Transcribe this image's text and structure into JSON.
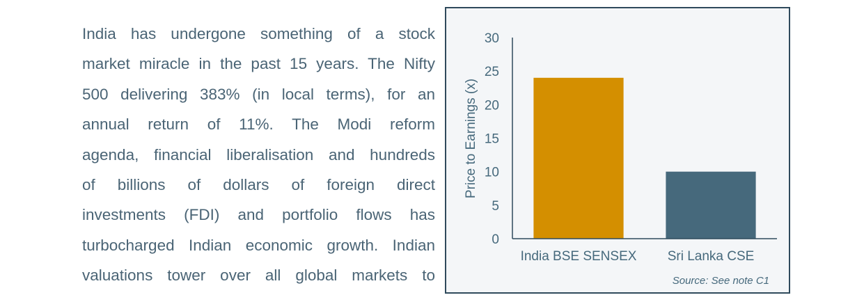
{
  "paragraph": {
    "lines": [
      "India has undergone something of a stock",
      "market miracle in the past 15 years. The Nifty",
      "500 delivering 383% (in local terms), for an",
      "annual return of 11%. The Modi reform",
      "agenda, financial liberalisation and hundreds",
      "of billions of dollars of foreign direct",
      "investments (FDI) and portfolio flows has",
      "turbocharged Indian economic growth. Indian",
      "valuations tower over all global markets to"
    ]
  },
  "chart_data": {
    "type": "bar",
    "ylabel": "Price to Earnings (x)",
    "categories": [
      "India BSE SENSEX",
      "Sri Lanka CSE"
    ],
    "values": [
      24,
      10
    ],
    "colors": [
      "#d48f00",
      "#46697c"
    ],
    "ylim": [
      0,
      30
    ],
    "yticks": [
      0,
      5,
      10,
      15,
      20,
      25,
      30
    ],
    "source": "Source: See note C1"
  }
}
